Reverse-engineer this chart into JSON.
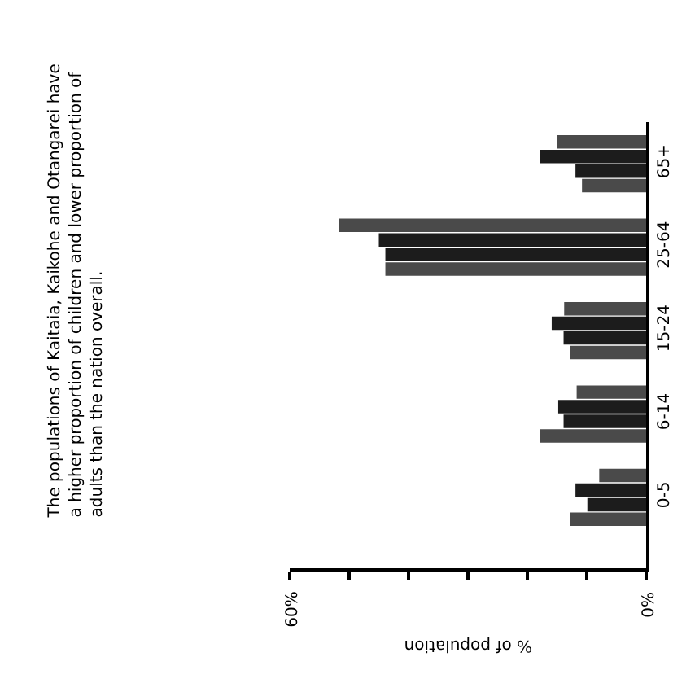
{
  "chart_data": {
    "type": "bar",
    "orientation": "horizontal",
    "title": "The populations of Kaitaia, Kaikohe and Otangarei have a higher proportion of children and lower proportion of adults than the nation overall.",
    "xlabel": "% of population",
    "categories": [
      "65+",
      "25-64",
      "15-24",
      "6-14",
      "0-5"
    ],
    "series": [
      {
        "color": "#4a4a4a",
        "values": [
          15.0,
          51.7,
          13.8,
          11.7,
          7.9
        ]
      },
      {
        "color": "#1c1c1c",
        "values": [
          17.9,
          45.0,
          15.9,
          14.8,
          11.9
        ]
      },
      {
        "color": "#1c1c1c",
        "values": [
          11.9,
          43.9,
          13.9,
          13.9,
          9.9
        ]
      },
      {
        "color": "#4a4a4a",
        "values": [
          10.8,
          43.9,
          12.8,
          17.9,
          12.8
        ]
      }
    ],
    "xlim": [
      60,
      0
    ],
    "xticks": [
      {
        "value": 0,
        "label": "0%"
      },
      {
        "value": 10,
        "label": null
      },
      {
        "value": 20,
        "label": null
      },
      {
        "value": 30,
        "label": null
      },
      {
        "value": 40,
        "label": null
      },
      {
        "value": 50,
        "label": null
      },
      {
        "value": 60,
        "label": "60%"
      }
    ]
  }
}
